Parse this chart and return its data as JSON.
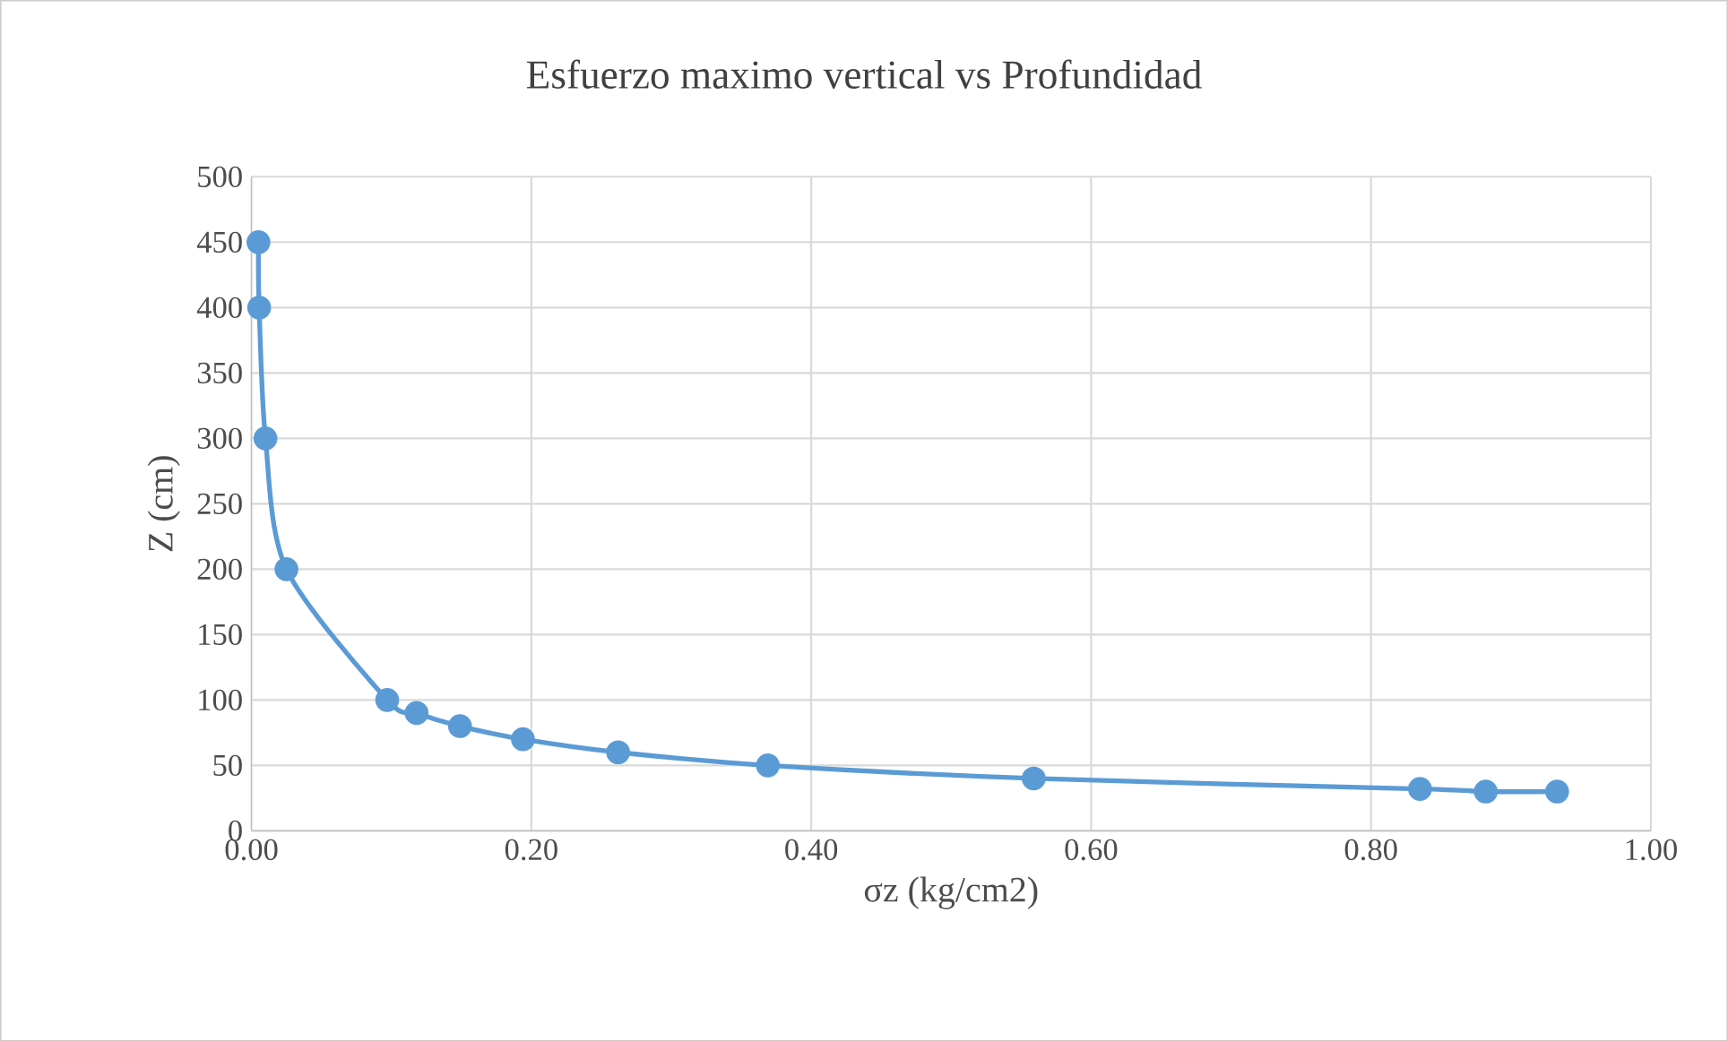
{
  "chart_data": {
    "type": "line",
    "title": "Esfuerzo maximo vertical vs Profundidad",
    "xlabel": "σz (kg/cm2)",
    "ylabel": "Z (cm)",
    "x": [
      0.005,
      0.0055,
      0.01,
      0.025,
      0.097,
      0.118,
      0.149,
      0.194,
      0.262,
      0.369,
      0.559,
      0.835,
      0.882,
      0.933
    ],
    "series": [
      {
        "color": "#5b9bd5",
        "values": [
          450,
          400,
          300,
          200,
          100,
          90,
          80,
          70,
          60,
          50,
          40,
          32,
          30,
          30
        ]
      }
    ],
    "xlim": [
      0,
      1
    ],
    "ylim": [
      0,
      500
    ],
    "xticks": [
      {
        "value": 0,
        "label": "0.00"
      },
      {
        "value": 0.2,
        "label": "0.20"
      },
      {
        "value": 0.4,
        "label": "0.40"
      },
      {
        "value": 0.6,
        "label": "0.60"
      },
      {
        "value": 0.8,
        "label": "0.80"
      },
      {
        "value": 1,
        "label": "1.00"
      }
    ],
    "yticks": [
      0,
      50,
      100,
      150,
      200,
      250,
      300,
      350,
      400,
      450,
      500
    ],
    "grid": true,
    "marker": "circle",
    "line_style": "solid"
  }
}
